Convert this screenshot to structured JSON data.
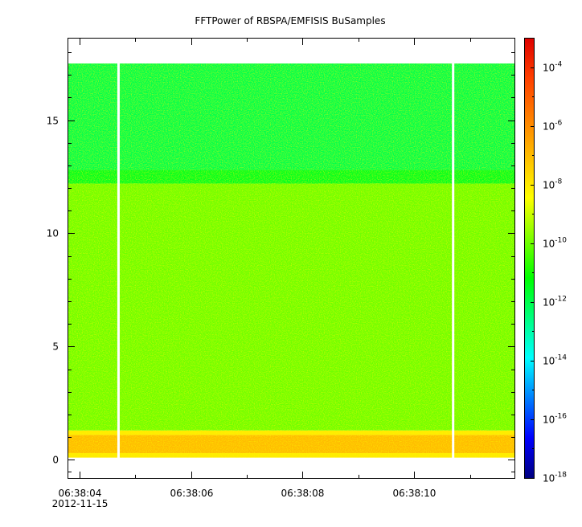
{
  "chart_data": {
    "type": "heatmap",
    "title": "FFTPower of RBSPA/EMFISIS  BuSamples",
    "xlabel": "",
    "ylabel": "",
    "x_start": "06:38:03.80",
    "x_end": "06:38:11.80",
    "xlim_seconds": [
      3.8,
      11.8
    ],
    "x_ticks": [
      {
        "label": "06:38:04",
        "sublabel": "2012-11-15",
        "value": 4
      },
      {
        "label": "06:38:06",
        "value": 6
      },
      {
        "label": "06:38:08",
        "value": 8
      },
      {
        "label": "06:38:10",
        "value": 10
      }
    ],
    "x_minor_tick_values": [
      5,
      7,
      9,
      11
    ],
    "ylim": [
      -0.8,
      18.6
    ],
    "y_ticks": [
      0,
      5,
      10,
      15
    ],
    "y_minor_tick_values": [
      -0.5,
      1,
      2,
      3,
      4,
      6,
      7,
      8,
      9,
      11,
      12,
      13,
      14,
      16,
      17,
      18
    ],
    "data_extent_y": [
      0.1,
      17.5
    ],
    "gap_times": [
      4.7,
      10.7
    ],
    "bands": [
      {
        "y_range": [
          0.1,
          0.3
        ],
        "power": 1e-08
      },
      {
        "y_range": [
          0.3,
          1.1
        ],
        "power": 1e-07
      },
      {
        "y_range": [
          1.1,
          1.3
        ],
        "power": 1e-08
      },
      {
        "y_range": [
          1.3,
          12.2
        ],
        "power": 1e-10
      },
      {
        "y_range": [
          12.2,
          12.8
        ],
        "power": 3e-12
      },
      {
        "y_range": [
          12.8,
          17.5
        ],
        "power": 1e-12
      }
    ],
    "colorbar": {
      "scale": "log",
      "range": [
        1e-18,
        0.001
      ],
      "tick_base": "10",
      "ticks": [
        {
          "value": 0.0001,
          "exp": "-4"
        },
        {
          "value": 1e-06,
          "exp": "-6"
        },
        {
          "value": 1e-08,
          "exp": "-8"
        },
        {
          "value": 1e-10,
          "exp": "-10"
        },
        {
          "value": 1e-12,
          "exp": "-12"
        },
        {
          "value": 1e-14,
          "exp": "-14"
        },
        {
          "value": 1e-16,
          "exp": "-16"
        },
        {
          "value": 1e-18,
          "exp": "-18"
        }
      ],
      "colormap": [
        "#00007f",
        "#0000ff",
        "#007fff",
        "#00ffff",
        "#00ff7f",
        "#00ff00",
        "#7fff00",
        "#ffff00",
        "#ffbf00",
        "#ff7f00",
        "#ff3f00",
        "#dd0000"
      ]
    }
  }
}
